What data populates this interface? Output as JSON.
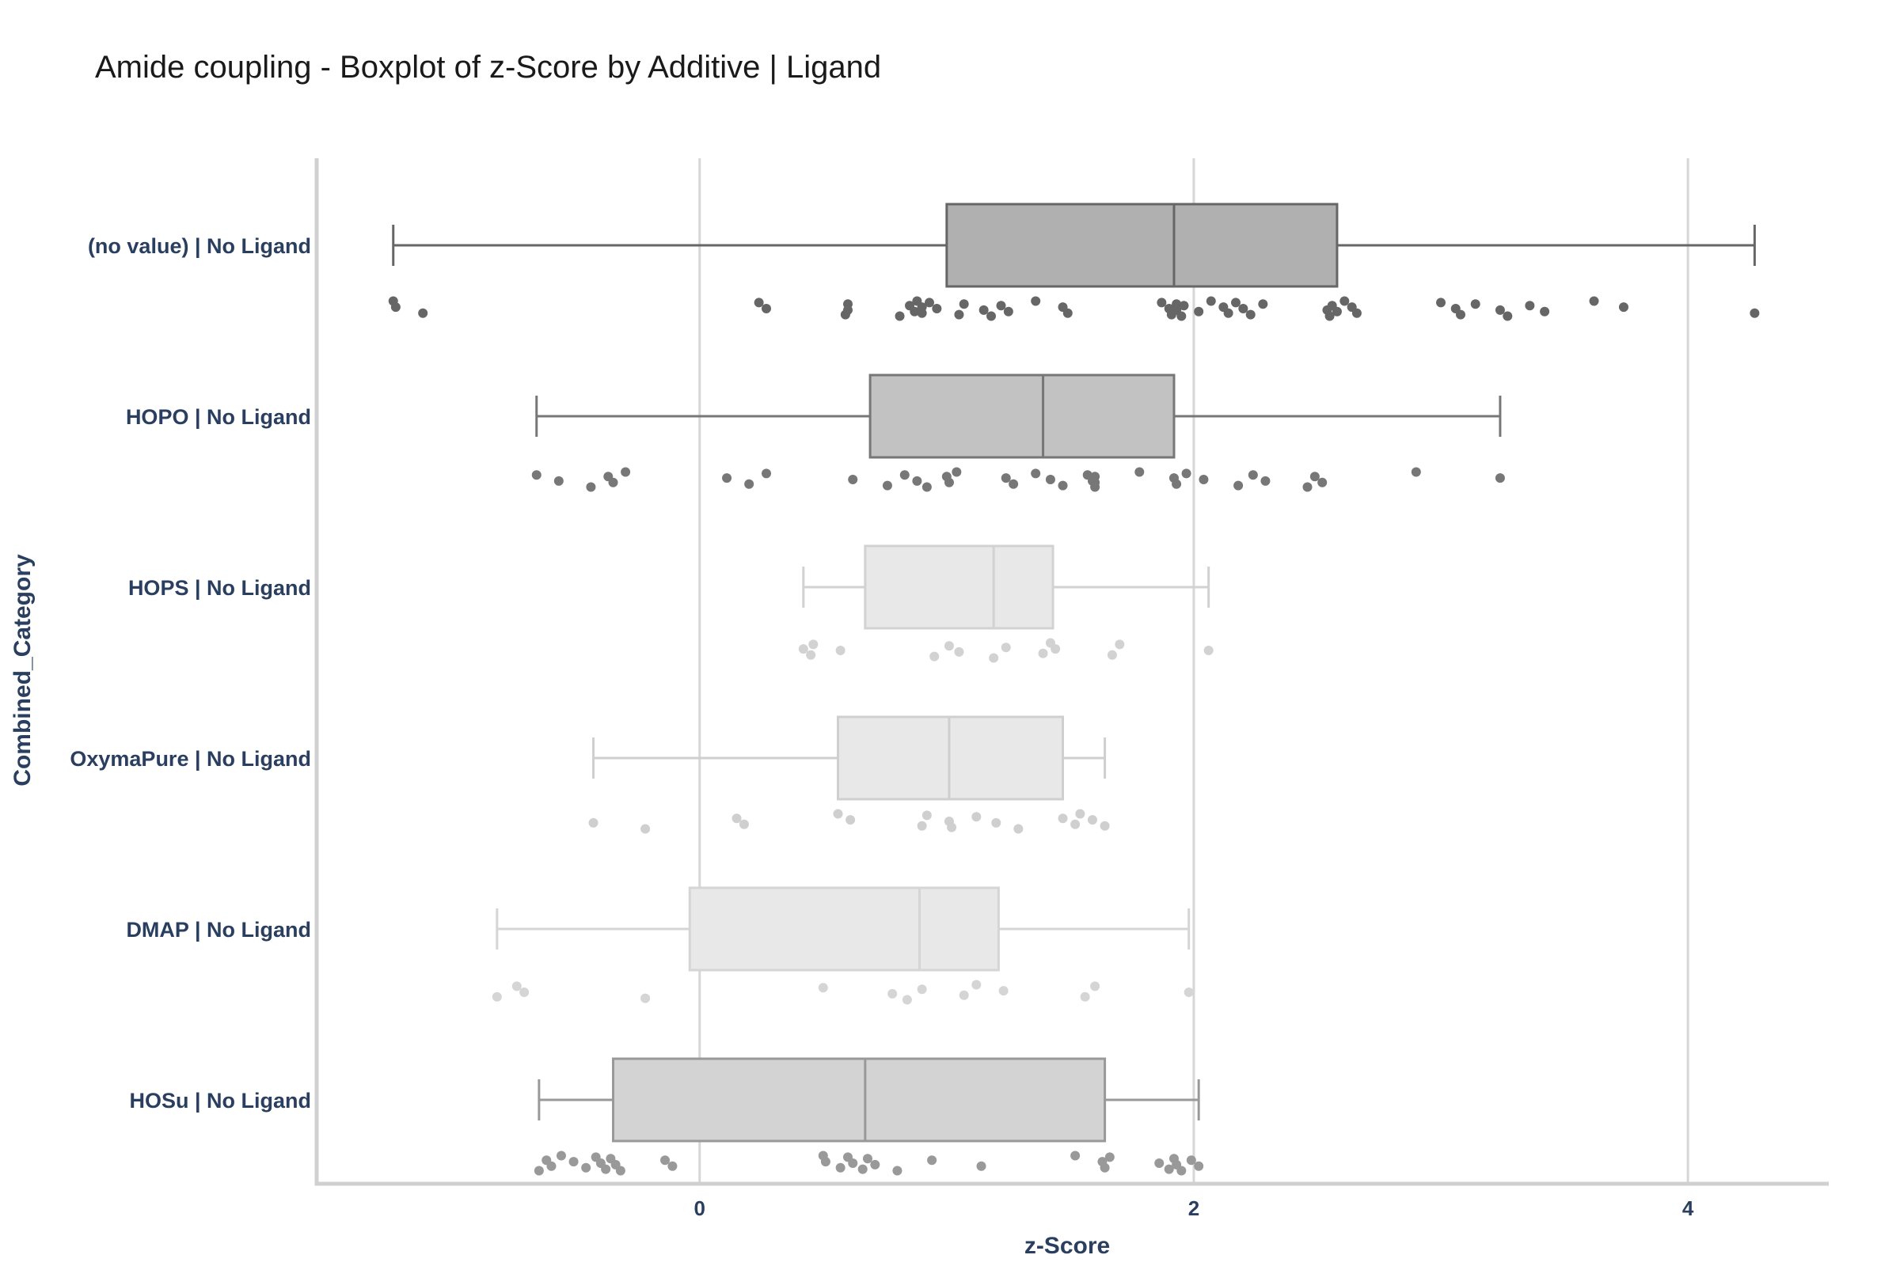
{
  "chart_data": {
    "type": "box",
    "title": "Amide coupling - Boxplot of z-Score by Additive | Ligand",
    "xlabel": "z-Score",
    "ylabel": "Combined_Category",
    "xlim": [
      -1.55,
      4.57
    ],
    "xticks": [
      0,
      2,
      4
    ],
    "orientation": "horizontal",
    "grid": "vertical lines at x ticks",
    "legend": "none",
    "series": [
      {
        "name": "(no value) | No Ligand",
        "color": "#666666",
        "fill": "#b0b0b0",
        "whisker_low": -1.24,
        "q1": 1.0,
        "median": 1.92,
        "q3": 2.58,
        "whisker_high": 4.27,
        "points": [
          -1.24,
          -1.23,
          -1.12,
          0.24,
          0.27,
          0.59,
          0.6,
          0.6,
          0.81,
          0.85,
          0.87,
          0.88,
          0.9,
          0.9,
          0.93,
          0.96,
          1.05,
          1.07,
          1.15,
          1.18,
          1.22,
          1.25,
          1.36,
          1.47,
          1.49,
          1.87,
          1.9,
          1.91,
          1.93,
          1.93,
          1.95,
          1.96,
          2.02,
          2.07,
          2.12,
          2.14,
          2.17,
          2.2,
          2.23,
          2.28,
          2.54,
          2.55,
          2.56,
          2.58,
          2.61,
          2.64,
          2.66,
          3.0,
          3.06,
          3.08,
          3.14,
          3.24,
          3.27,
          3.36,
          3.42,
          3.62,
          3.74,
          4.27
        ]
      },
      {
        "name": "HOPO | No Ligand",
        "color": "#777777",
        "fill": "#c2c2c2",
        "whisker_low": -0.66,
        "q1": 0.69,
        "median": 1.39,
        "q3": 1.92,
        "whisker_high": 3.24,
        "points": [
          -0.66,
          -0.57,
          -0.44,
          -0.37,
          -0.35,
          -0.3,
          0.11,
          0.2,
          0.27,
          0.62,
          0.76,
          0.83,
          0.88,
          0.92,
          1.0,
          1.01,
          1.04,
          1.24,
          1.27,
          1.36,
          1.42,
          1.47,
          1.57,
          1.59,
          1.6,
          1.6,
          1.6,
          1.78,
          1.92,
          1.93,
          1.97,
          2.04,
          2.18,
          2.24,
          2.29,
          2.46,
          2.49,
          2.52,
          2.9,
          3.24
        ]
      },
      {
        "name": "HOPS | No Ligand",
        "color": "#d2d2d2",
        "fill": "#e8e8e8",
        "whisker_low": 0.42,
        "q1": 0.67,
        "median": 1.19,
        "q3": 1.43,
        "whisker_high": 2.06,
        "points": [
          0.42,
          0.45,
          0.46,
          0.57,
          0.95,
          1.01,
          1.05,
          1.19,
          1.24,
          1.39,
          1.42,
          1.44,
          1.67,
          1.7,
          2.06
        ]
      },
      {
        "name": "OxymaPure | No Ligand",
        "color": "#cfcfcf",
        "fill": "#e8e8e8",
        "whisker_low": -0.43,
        "q1": 0.56,
        "median": 1.01,
        "q3": 1.47,
        "whisker_high": 1.64,
        "points": [
          -0.43,
          -0.22,
          0.15,
          0.18,
          0.56,
          0.61,
          0.9,
          0.92,
          1.01,
          1.02,
          1.12,
          1.2,
          1.29,
          1.47,
          1.52,
          1.54,
          1.59,
          1.64
        ]
      },
      {
        "name": "DMAP | No Ligand",
        "color": "#d5d5d5",
        "fill": "#e8e8e8",
        "whisker_low": -0.82,
        "q1": -0.04,
        "median": 0.89,
        "q3": 1.21,
        "whisker_high": 1.98,
        "points": [
          -0.82,
          -0.74,
          -0.71,
          -0.22,
          0.5,
          0.78,
          0.84,
          0.9,
          1.07,
          1.12,
          1.23,
          1.56,
          1.6,
          1.98
        ]
      },
      {
        "name": "HOSu | No Ligand",
        "color": "#999999",
        "fill": "#d3d3d3",
        "whisker_low": -0.65,
        "q1": -0.35,
        "median": 0.67,
        "q3": 1.64,
        "whisker_high": 2.02,
        "points": [
          -0.65,
          -0.62,
          -0.6,
          -0.56,
          -0.51,
          -0.46,
          -0.42,
          -0.4,
          -0.38,
          -0.36,
          -0.34,
          -0.32,
          -0.14,
          -0.11,
          0.5,
          0.51,
          0.57,
          0.6,
          0.62,
          0.66,
          0.68,
          0.71,
          0.8,
          0.94,
          1.14,
          1.52,
          1.63,
          1.64,
          1.66,
          1.86,
          1.9,
          1.92,
          1.93,
          1.95,
          1.99,
          2.02
        ]
      }
    ]
  }
}
